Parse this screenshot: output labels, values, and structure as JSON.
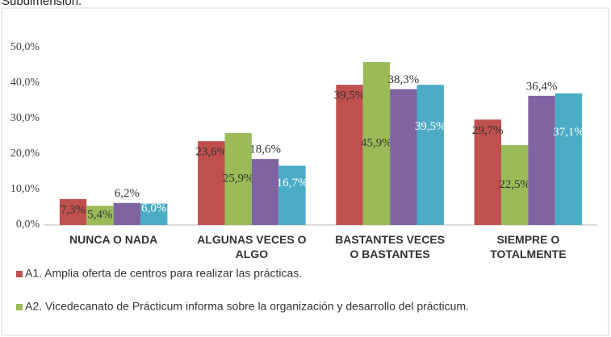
{
  "chart_data": {
    "type": "bar",
    "title": "Subdimensión:",
    "categories": [
      "NUNCA O NADA",
      "ALGUNAS VECES O ALGO",
      "BASTANTES VECES O BASTANTES",
      "SIEMPRE O TOTALMENTE"
    ],
    "series": [
      {
        "name": "A1. Amplia oferta de centros para realizar las prácticas.",
        "color": "#c0504d",
        "values": [
          7.3,
          23.6,
          39.5,
          29.7
        ],
        "value_labels": [
          "7,3%",
          "23,6%",
          "39,5%",
          "29,7%"
        ]
      },
      {
        "name": "A2. Vicedecanato de Prácticum informa sobre la organización y desarrollo del prácticum.",
        "color": "#9bbb59",
        "values": [
          5.4,
          25.9,
          45.9,
          22.5
        ],
        "value_labels": [
          "5,4%",
          "25,9%",
          "45,9%",
          "22,5%"
        ]
      },
      {
        "color": "#8064a2",
        "values": [
          6.2,
          18.6,
          38.3,
          36.4
        ],
        "value_labels": [
          "6,2%",
          "18,6%",
          "38,3%",
          "36,4%"
        ]
      },
      {
        "color": "#4bacc6",
        "values": [
          6.0,
          16.7,
          39.5,
          37.1
        ],
        "value_labels": [
          "6,0%",
          "16,7%",
          "39,5%",
          "37,1%"
        ]
      }
    ],
    "ylim": [
      0,
      60
    ],
    "yticks": [
      {
        "value": 0,
        "label": "0,0%"
      },
      {
        "value": 10,
        "label": "10,0%"
      },
      {
        "value": 20,
        "label": "20,0%"
      },
      {
        "value": 30,
        "label": "30,0%"
      },
      {
        "value": 40,
        "label": "40,0%"
      },
      {
        "value": 50,
        "label": "50,0%"
      }
    ],
    "grid": false
  }
}
